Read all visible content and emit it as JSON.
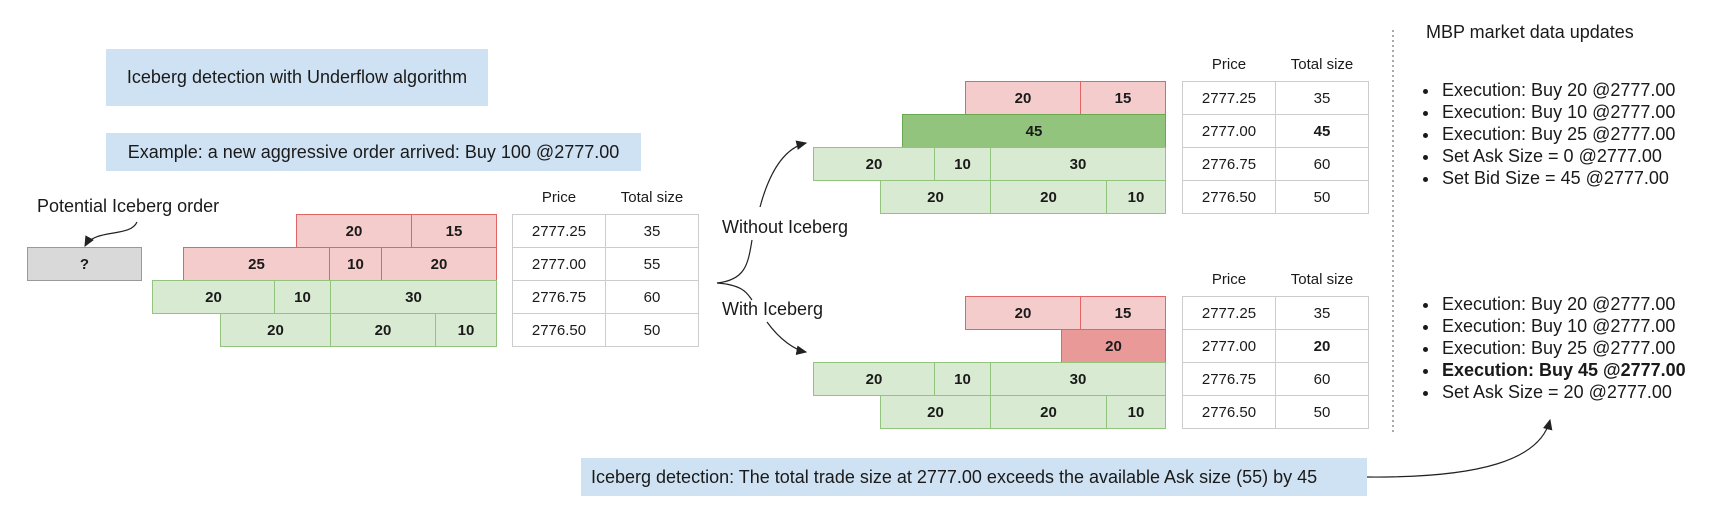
{
  "title": "Iceberg detection with Underflow algorithm",
  "example": "Example: a new aggressive order arrived: Buy 100 @2777.00",
  "potential_label": "Potential Iceberg order",
  "iceberg_placeholder": "?",
  "without_label": "Without Iceberg",
  "with_label": "With Iceberg",
  "mbp_title": "MBP market data updates",
  "detection_note": "Iceberg detection: The total trade size at 2777.00 exceeds the available Ask size (55) by 45",
  "table_headers": {
    "price": "Price",
    "total": "Total size"
  },
  "initial_book": {
    "rows": [
      {
        "side": "ask",
        "segments": [
          "20",
          "15"
        ],
        "price": "2777.25",
        "total": "35"
      },
      {
        "side": "ask",
        "segments": [
          "25",
          "10",
          "20"
        ],
        "price": "2777.00",
        "total": "55"
      },
      {
        "side": "bid",
        "segments": [
          "20",
          "10",
          "30"
        ],
        "price": "2776.75",
        "total": "60"
      },
      {
        "side": "bid",
        "segments": [
          "20",
          "20",
          "10"
        ],
        "price": "2776.50",
        "total": "50"
      }
    ]
  },
  "without_book": {
    "rows": [
      {
        "side": "ask",
        "segments": [
          "20",
          "15"
        ],
        "price": "2777.25",
        "total": "35",
        "bold": false
      },
      {
        "side": "bidfill",
        "segments": [
          "45"
        ],
        "price": "2777.00",
        "total": "45",
        "bold": true
      },
      {
        "side": "bid",
        "segments": [
          "20",
          "10",
          "30"
        ],
        "price": "2776.75",
        "total": "60",
        "bold": false
      },
      {
        "side": "bid",
        "segments": [
          "20",
          "20",
          "10"
        ],
        "price": "2776.50",
        "total": "50",
        "bold": false
      }
    ]
  },
  "with_book": {
    "rows": [
      {
        "side": "ask",
        "segments": [
          "20",
          "15"
        ],
        "price": "2777.25",
        "total": "35",
        "bold": false
      },
      {
        "side": "askfill",
        "segments": [
          "20"
        ],
        "price": "2777.00",
        "total": "20",
        "bold": true
      },
      {
        "side": "bid",
        "segments": [
          "20",
          "10",
          "30"
        ],
        "price": "2776.75",
        "total": "60",
        "bold": false
      },
      {
        "side": "bid",
        "segments": [
          "20",
          "20",
          "10"
        ],
        "price": "2776.50",
        "total": "50",
        "bold": false
      }
    ]
  },
  "updates_without": [
    "Execution: Buy 20 @2777.00",
    "Execution: Buy 10 @2777.00",
    "Execution: Buy 25 @2777.00",
    "Set Ask Size = 0 @2777.00",
    "Set Bid Size = 45 @2777.00"
  ],
  "updates_with": [
    "Execution: Buy 20 @2777.00",
    "Execution: Buy 10 @2777.00",
    "Execution: Buy 25 @2777.00",
    "Execution: Buy 45 @2777.00",
    "Set Ask Size = 20 @2777.00"
  ],
  "updates_with_bold_index": 3,
  "colors": {
    "ask_fill": "#f4cccc",
    "ask_border": "#e06666",
    "bid_fill": "#d9ead3",
    "bid_border": "#93c47d",
    "bid_strong": "#93c47d",
    "ask_strong": "#ea9999",
    "note_bg": "#cfe2f3"
  }
}
